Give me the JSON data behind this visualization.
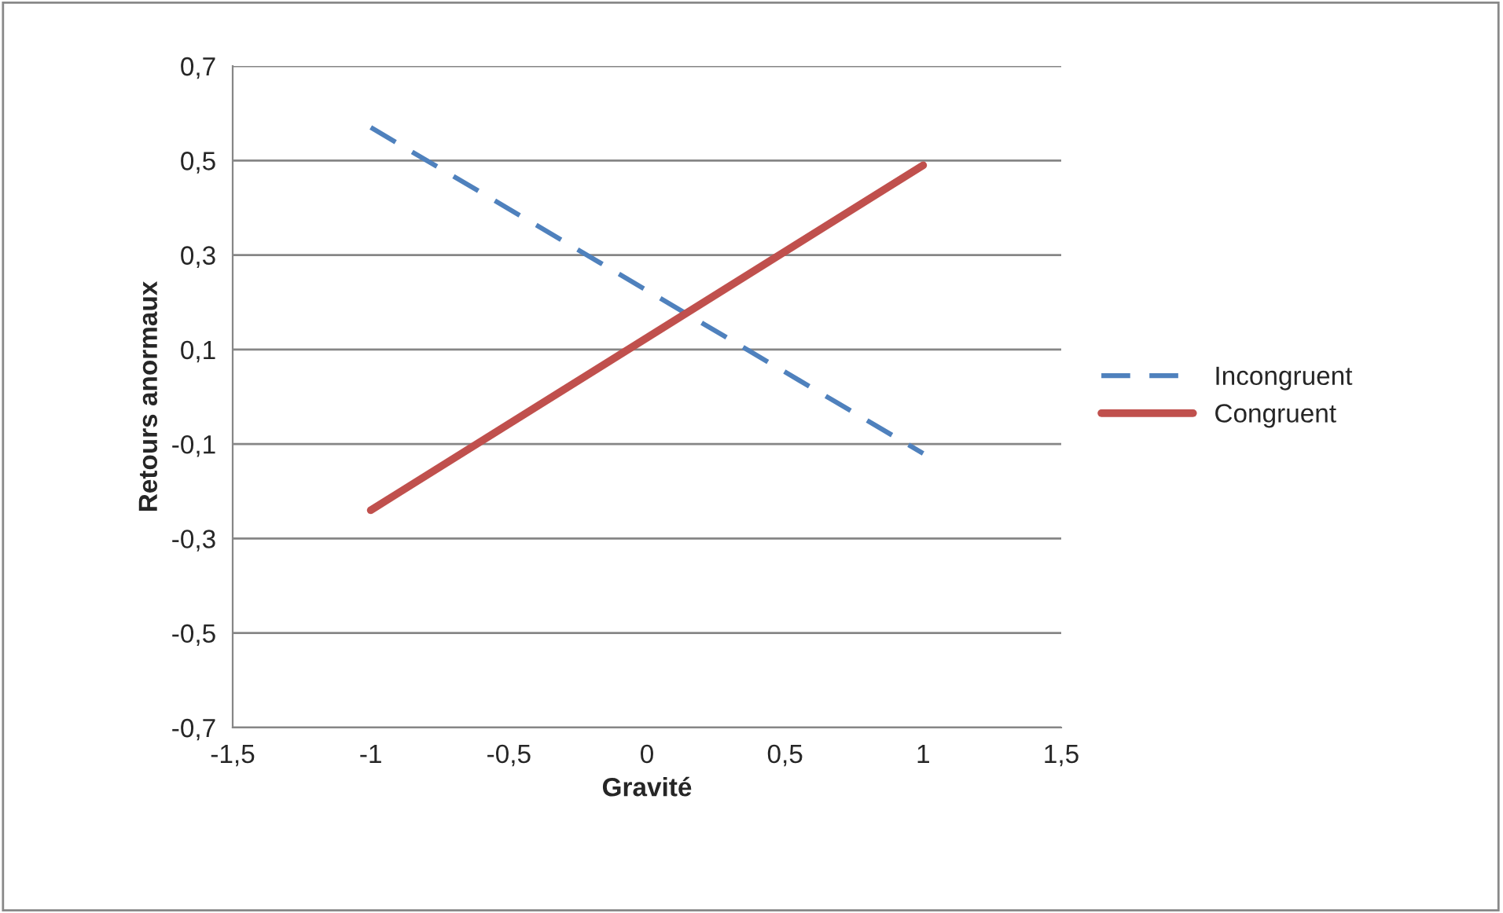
{
  "chart_data": {
    "type": "line",
    "xlabel": "Gravité",
    "ylabel": "Retours anormaux",
    "x": [
      -1,
      1
    ],
    "series": [
      {
        "name": "Incongruent",
        "color": "#4f81bd",
        "line_style": "dashed",
        "values": [
          0.57,
          -0.12
        ]
      },
      {
        "name": "Congruent",
        "color": "#c0504d",
        "line_style": "solid",
        "values": [
          -0.24,
          0.49
        ]
      }
    ],
    "xlim": [
      -1.5,
      1.5
    ],
    "xticks": [
      {
        "value": -1.5,
        "label": "-1,5"
      },
      {
        "value": -1,
        "label": "-1"
      },
      {
        "value": -0.5,
        "label": "-0,5"
      },
      {
        "value": 0,
        "label": "0"
      },
      {
        "value": 0.5,
        "label": "0,5"
      },
      {
        "value": 1,
        "label": "1"
      },
      {
        "value": 1.5,
        "label": "1,5"
      }
    ],
    "ylim": [
      -0.7,
      0.7
    ],
    "yticks": [
      {
        "value": -0.7,
        "label": "-0,7"
      },
      {
        "value": -0.5,
        "label": "-0,5"
      },
      {
        "value": -0.3,
        "label": "-0,3"
      },
      {
        "value": -0.1,
        "label": "-0,1"
      },
      {
        "value": 0.1,
        "label": "0,1"
      },
      {
        "value": 0.3,
        "label": "0,3"
      },
      {
        "value": 0.5,
        "label": "0,5"
      },
      {
        "value": 0.7,
        "label": "0,7"
      }
    ],
    "grid": "y",
    "legend": "right",
    "marker": "none"
  }
}
